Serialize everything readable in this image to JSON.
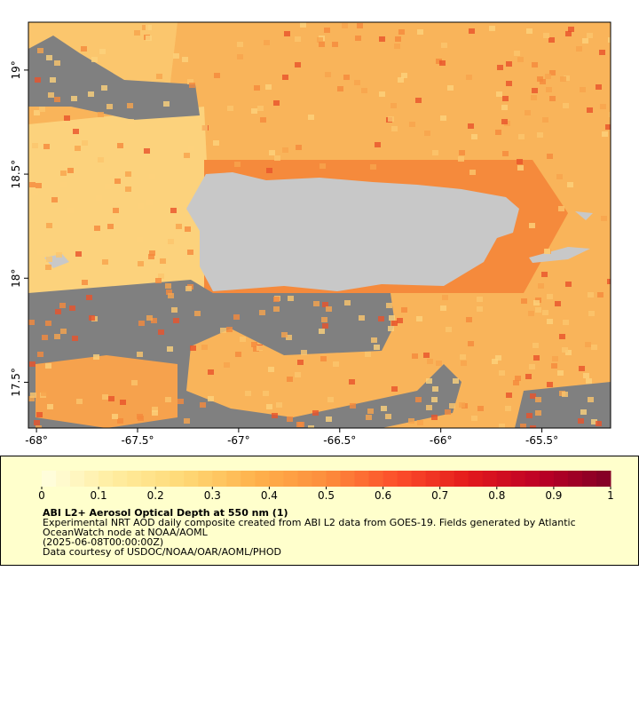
{
  "map": {
    "xlim": [
      -68.04,
      -65.16
    ],
    "ylim": [
      17.28,
      19.23
    ],
    "xticks": [
      {
        "value": -68,
        "label": "-68°"
      },
      {
        "value": -67.5,
        "label": "-67.5°"
      },
      {
        "value": -67,
        "label": "-67°"
      },
      {
        "value": -66.5,
        "label": "-66.5°"
      },
      {
        "value": -66,
        "label": "-66°"
      },
      {
        "value": -65.5,
        "label": "-65.5°"
      }
    ],
    "yticks": [
      {
        "value": 19,
        "label": "19°"
      },
      {
        "value": 18.5,
        "label": "18.5°"
      },
      {
        "value": 18,
        "label": "18°"
      },
      {
        "value": 17.5,
        "label": "17.5°"
      }
    ]
  },
  "colorbar": {
    "lim": [
      0,
      1
    ],
    "ticks": [
      0,
      0.1,
      0.2,
      0.3,
      0.4,
      0.5,
      0.6,
      0.7,
      0.8,
      0.9,
      1
    ],
    "colors": [
      "#ffffe0",
      "#ffeda0",
      "#fed976",
      "#feb24c",
      "#fd8d3c",
      "#fc4e2a",
      "#e31a1c",
      "#bd0026",
      "#800026"
    ]
  },
  "legend": {
    "title": "ABI L2+ Aerosol Optical Depth at 550 nm (1)",
    "lines": [
      "Experimental NRT AOD daily composite created from ABI L2 data from GOES-19. Fields generated by Atlantic",
      "OceanWatch node at NOAA/AOML",
      "(2025-06-08T00:00:00Z)",
      "Data courtesy of USDOC/NOAA/OAR/AOML/PHOD"
    ]
  }
}
